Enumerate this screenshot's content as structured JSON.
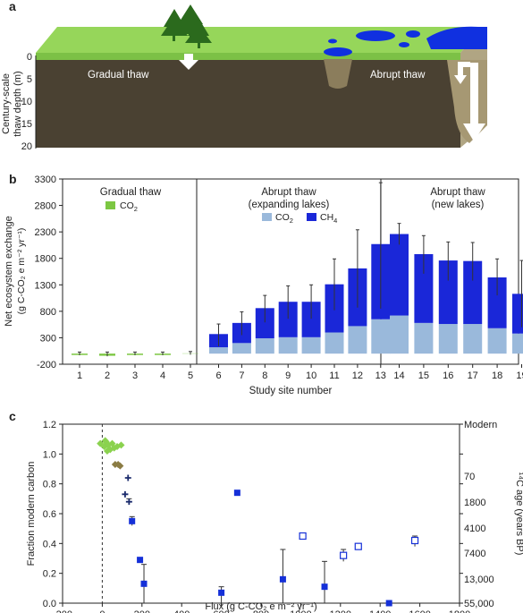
{
  "panels": {
    "a": {
      "label": "a",
      "ylabel_line1": "Century-scale",
      "ylabel_line2": "thaw depth (m)",
      "yticks": [
        "0",
        "5",
        "10",
        "15",
        "20"
      ],
      "gradual_label": "Gradual thaw",
      "abrupt_label": "Abrupt thaw",
      "colors": {
        "grass": "#96d65a",
        "soil": "#4a4132",
        "water": "#1030e0",
        "bank": "#b0a583"
      }
    },
    "b": {
      "label": "b",
      "group1_title": "Gradual thaw",
      "group1_legend": "CO",
      "group1_legend_sub": "2",
      "group2_title_line1": "Abrupt thaw",
      "group2_title_line2": "(expanding lakes)",
      "group3_title_line1": "Abrupt thaw",
      "group3_title_line2": "(new lakes)",
      "legend_co2": "CO",
      "legend_co2_sub": "2",
      "legend_ch4": "CH",
      "legend_ch4_sub": "4",
      "ylabel_line1": "Net ecosystem exchange",
      "ylabel_line2": "(g C-CO₂ e m⁻² yr⁻¹)",
      "xlabel": "Study site number"
    },
    "c": {
      "label": "c",
      "ylabel_left": "Fraction modern carbon",
      "ylabel_right": "¹⁴C age (years BP)",
      "xlabel": "Flux (g C-CO₂ e m⁻² yr⁻¹)",
      "right_ticks": [
        "Modern",
        "70",
        "1800",
        "4100",
        "7400",
        "13,000",
        "55,000"
      ]
    }
  },
  "chart_data": [
    {
      "type": "bar",
      "stacked": true,
      "categories": [
        "1",
        "2",
        "3",
        "4",
        "5",
        "6",
        "7",
        "8",
        "9",
        "10",
        "11",
        "12",
        "13",
        "14",
        "15",
        "16",
        "17",
        "18",
        "19"
      ],
      "ylim": [
        -200,
        3300
      ],
      "yticks": [
        -200,
        300,
        800,
        1300,
        1800,
        2300,
        2800,
        3300
      ],
      "xlabel": "Study site number",
      "ylabel": "Net ecosystem exchange (g C-CO2 e m-2 yr-1)",
      "series": [
        {
          "name": "CO2 (gradual thaw)",
          "color": "#7cc742",
          "values": [
            -10,
            -40,
            -15,
            -20,
            5,
            null,
            null,
            null,
            null,
            null,
            null,
            null,
            null,
            null,
            null,
            null,
            null,
            null,
            null
          ]
        },
        {
          "name": "CO2",
          "color": "#9ab9db",
          "values": [
            null,
            null,
            null,
            null,
            null,
            120,
            200,
            290,
            310,
            310,
            400,
            520,
            650,
            720,
            580,
            560,
            560,
            480,
            380
          ]
        },
        {
          "name": "CH4",
          "color": "#1a27d8",
          "values": [
            null,
            null,
            null,
            null,
            null,
            250,
            380,
            570,
            670,
            670,
            910,
            1090,
            1420,
            1540,
            1300,
            1200,
            1190,
            960,
            750
          ]
        }
      ],
      "totals": [
        -10,
        -40,
        -15,
        -20,
        5,
        370,
        580,
        860,
        980,
        980,
        1310,
        1610,
        2070,
        2260,
        1880,
        1760,
        1750,
        1440,
        1130
      ],
      "err_hi": [
        30,
        30,
        30,
        30,
        40,
        560,
        790,
        1100,
        1280,
        1300,
        1790,
        2340,
        3230,
        2460,
        2230,
        2110,
        2100,
        1790,
        1760
      ],
      "err_lo": [
        -30,
        -50,
        -30,
        -30,
        -20,
        140,
        350,
        590,
        660,
        660,
        820,
        870,
        850,
        2060,
        1510,
        1380,
        1380,
        1100,
        500
      ]
    },
    {
      "type": "scatter",
      "xlim": [
        -200,
        1800
      ],
      "ylim": [
        0,
        1.2
      ],
      "xticks": [
        -200,
        0,
        200,
        400,
        600,
        800,
        1000,
        1200,
        1400,
        1600,
        1800
      ],
      "yticks": [
        0,
        0.2,
        0.4,
        0.6,
        0.8,
        1.0,
        1.2
      ],
      "xlabel": "Flux (g C-CO2 e m-2 yr-1)",
      "ylabel": "Fraction modern carbon",
      "series": [
        {
          "name": "gradual thaw",
          "marker": "diamond",
          "color": "#8bd24f",
          "points": [
            [
              -10,
              1.07
            ],
            [
              10,
              1.05
            ],
            [
              20,
              1.08
            ],
            [
              30,
              1.06
            ],
            [
              40,
              1.03
            ],
            [
              50,
              1.07
            ],
            [
              60,
              1.04
            ],
            [
              75,
              1.05
            ],
            [
              95,
              1.06
            ],
            [
              25,
              1.02
            ],
            [
              15,
              1.09
            ]
          ]
        },
        {
          "name": "brown diamonds",
          "marker": "diamond",
          "color": "#8b7c44",
          "points": [
            [
              65,
              0.93
            ],
            [
              80,
              0.93
            ],
            [
              90,
              0.92
            ]
          ]
        },
        {
          "name": "dark crosses",
          "marker": "plus",
          "color": "#1a2a6c",
          "points": [
            [
              115,
              0.73
            ],
            [
              135,
              0.68
            ],
            [
              130,
              0.84
            ]
          ]
        },
        {
          "name": "filled squares",
          "marker": "square",
          "color": "#1530d8",
          "points": [
            [
              150,
              0.55
            ],
            [
              190,
              0.29
            ],
            [
              210,
              0.13
            ],
            [
              600,
              0.07
            ],
            [
              680,
              0.74
            ],
            [
              910,
              0.16
            ],
            [
              1120,
              0.11
            ],
            [
              1445,
              0.0
            ]
          ]
        },
        {
          "name": "open squares",
          "marker": "square-open",
          "color": "#1530d8",
          "points": [
            [
              1010,
              0.45
            ],
            [
              1215,
              0.32
            ],
            [
              1290,
              0.38
            ],
            [
              1575,
              0.42
            ]
          ]
        }
      ],
      "error_bars": [
        {
          "x": 210,
          "y_hi": 0.26,
          "y_lo": 0.0
        },
        {
          "x": 600,
          "y_hi": 0.11,
          "y_lo": 0.0
        },
        {
          "x": 910,
          "y_hi": 0.36,
          "y_lo": 0.0
        },
        {
          "x": 1120,
          "y_hi": 0.28,
          "y_lo": 0.0
        },
        {
          "x": 1215,
          "y_hi": 0.36,
          "y_lo": 0.28
        },
        {
          "x": 1575,
          "y_hi": 0.45,
          "y_lo": 0.38
        },
        {
          "x": 150,
          "y_hi": 0.58,
          "y_lo": 0.52
        },
        {
          "x": 135,
          "y_hi": 0.7,
          "y_lo": 0.66
        }
      ],
      "reference_line_x": 0
    }
  ]
}
